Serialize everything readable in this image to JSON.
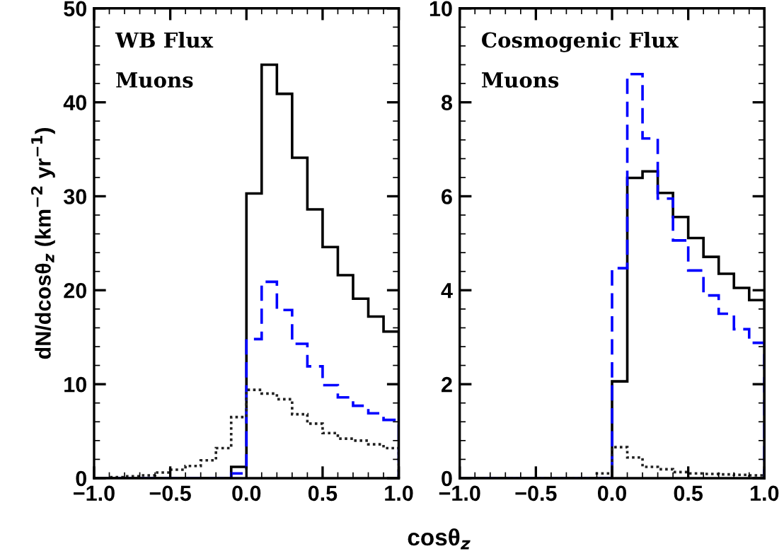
{
  "chart_data": [
    {
      "type": "histogram",
      "annotations": [
        "WB Flux",
        "Muons"
      ],
      "xlabel": "cosθ$_{z}$",
      "ylabel": "dN/dcosθ$_{z}$ (km$^{−2}$ yr$^{−1}$)",
      "bins": [
        -1.0,
        -0.9,
        -0.8,
        -0.7,
        -0.6,
        -0.5,
        -0.4,
        -0.3,
        -0.2,
        -0.1,
        0.0,
        0.1,
        0.2,
        0.3,
        0.4,
        0.5,
        0.6,
        0.7,
        0.8,
        0.9,
        1.0
      ],
      "series": [
        {
          "color": "#000000",
          "line_style": "solid",
          "values": [
            0,
            0,
            0,
            0,
            0,
            0,
            0,
            0,
            0,
            1.2,
            30.3,
            44.0,
            40.9,
            34.1,
            28.6,
            24.6,
            21.6,
            19.1,
            17.2,
            15.6
          ]
        },
        {
          "color": "#0000ff",
          "line_style": "dashed",
          "values": [
            0,
            0,
            0,
            0,
            0,
            0,
            0,
            0,
            0,
            0.5,
            14.8,
            20.9,
            17.9,
            14.3,
            11.9,
            9.9,
            8.6,
            7.7,
            6.9,
            6.2
          ]
        },
        {
          "color": "#222222",
          "line_style": "dotted",
          "values": [
            0,
            0.1,
            0.2,
            0.3,
            0.6,
            0.9,
            1.3,
            1.9,
            3.2,
            6.5,
            9.4,
            9.0,
            8.4,
            6.8,
            5.8,
            4.8,
            4.2,
            4.0,
            3.6,
            3.2
          ]
        }
      ],
      "xlim": [
        -1.0,
        1.0
      ],
      "xticks": [
        {
          "value": -1.0,
          "label": "−1.0"
        },
        {
          "value": -0.5,
          "label": "−0.5"
        },
        {
          "value": 0.0,
          "label": "0.0"
        },
        {
          "value": 0.5,
          "label": "0.5"
        },
        {
          "value": 1.0,
          "label": "1.0"
        }
      ],
      "ylim": [
        0,
        50
      ],
      "yticks": [
        0,
        10,
        20,
        30,
        40,
        50
      ],
      "grid": false,
      "legend": false
    },
    {
      "type": "histogram",
      "annotations": [
        "Cosmogenic Flux",
        "Muons"
      ],
      "bins": [
        -1.0,
        -0.9,
        -0.8,
        -0.7,
        -0.6,
        -0.5,
        -0.4,
        -0.3,
        -0.2,
        -0.1,
        0.0,
        0.1,
        0.2,
        0.3,
        0.4,
        0.5,
        0.6,
        0.7,
        0.8,
        0.9,
        1.0
      ],
      "series": [
        {
          "color": "#000000",
          "line_style": "solid",
          "values": [
            0,
            0,
            0,
            0,
            0,
            0,
            0,
            0,
            0,
            0,
            2.06,
            6.39,
            6.53,
            6.07,
            5.56,
            5.11,
            4.71,
            4.35,
            4.05,
            3.79
          ]
        },
        {
          "color": "#0000ff",
          "line_style": "dashed",
          "values": [
            0,
            0,
            0,
            0,
            0,
            0,
            0,
            0,
            0,
            0,
            4.47,
            8.6,
            7.23,
            5.95,
            5.06,
            4.42,
            3.89,
            3.5,
            3.17,
            2.88
          ]
        },
        {
          "color": "#222222",
          "line_style": "dotted",
          "values": [
            0,
            0,
            0,
            0,
            0,
            0,
            0,
            0,
            0,
            0.1,
            0.66,
            0.44,
            0.24,
            0.19,
            0.13,
            0.1,
            0.09,
            0.08,
            0.07,
            0.06
          ]
        }
      ],
      "xlim": [
        -1.0,
        1.0
      ],
      "xticks": [
        {
          "value": -1.0,
          "label": "−1.0"
        },
        {
          "value": -0.5,
          "label": "−0.5"
        },
        {
          "value": 0.0,
          "label": "0.0"
        },
        {
          "value": 0.5,
          "label": "0.5"
        },
        {
          "value": 1.0,
          "label": "1.0"
        }
      ],
      "ylim": [
        0,
        10
      ],
      "yticks": [
        0,
        2,
        4,
        6,
        8,
        10
      ],
      "grid": false,
      "legend": false
    }
  ]
}
